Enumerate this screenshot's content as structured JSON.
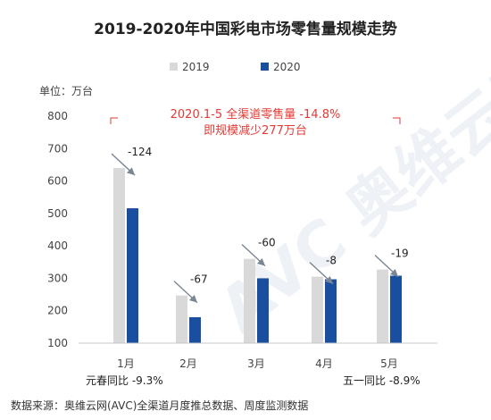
{
  "chart_data": {
    "type": "bar",
    "title": "2019-2020年中国彩电市场零售量规模走势",
    "unit_label": "单位：万台",
    "categories": [
      "1月",
      "2月",
      "3月",
      "4月",
      "5月"
    ],
    "series": [
      {
        "name": "2019",
        "color": "#d9d9d9",
        "values": [
          640,
          247,
          360,
          305,
          327
        ]
      },
      {
        "name": "2020",
        "color": "#1a4fa0",
        "values": [
          516,
          180,
          300,
          297,
          308
        ]
      }
    ],
    "changes": [
      "-124",
      "-67",
      "-60",
      "-8",
      "-19"
    ],
    "ylim": [
      100,
      800
    ],
    "yticks": [
      100,
      200,
      300,
      400,
      500,
      600,
      700,
      800
    ],
    "legend_position": "top",
    "annotation": {
      "line1": "2020.1-5 全渠道零售量 -14.8%",
      "line2": "即规模减少277万台"
    },
    "notes": {
      "spring": "元春同比 -9.3%",
      "mayday": "五一同比 -8.9%"
    },
    "source": "数据来源：奥维云网(AVC)全渠道月度推总数据、周度监测数据"
  }
}
